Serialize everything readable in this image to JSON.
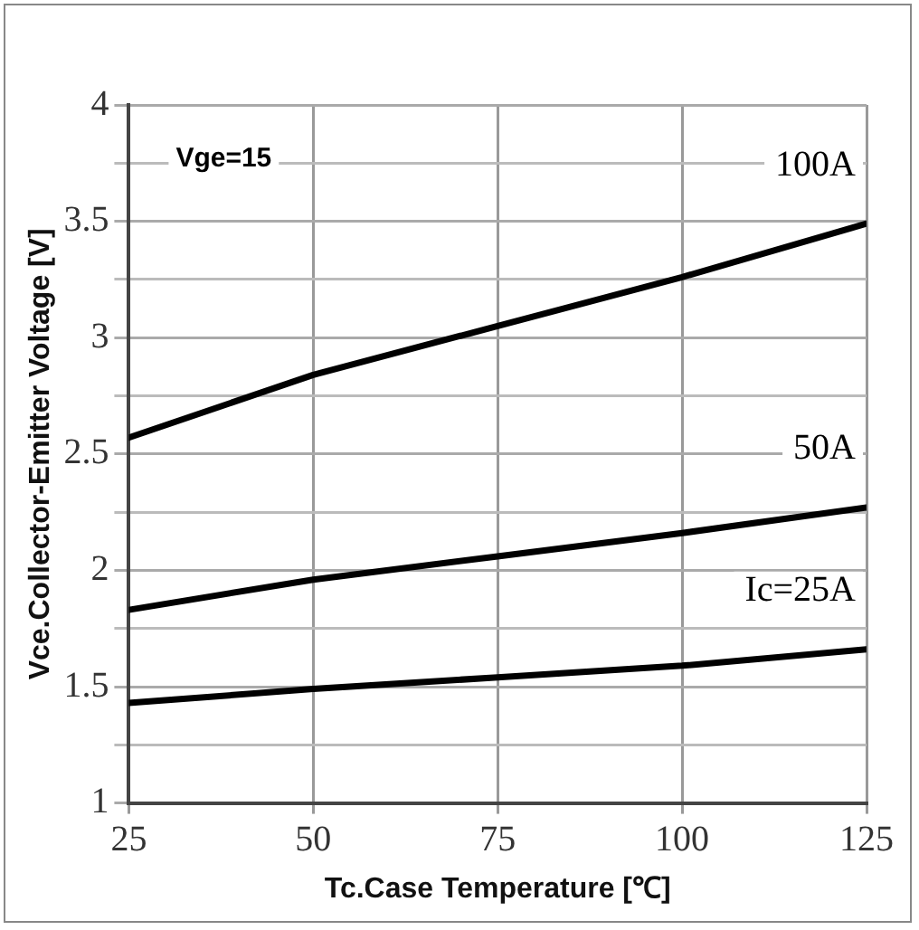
{
  "chart_data": {
    "type": "line",
    "xlabel": "Tc.Case Temperature [℃]",
    "ylabel": "Vce.Collector-Emitter Voltage [V]",
    "annotations": [
      "Vge=15"
    ],
    "x": [
      25,
      50,
      75,
      100,
      125
    ],
    "series": [
      {
        "name": "100A",
        "color": "#000000",
        "values": [
          2.57,
          2.84,
          3.05,
          3.26,
          3.49
        ]
      },
      {
        "name": "50A",
        "color": "#000000",
        "values": [
          1.83,
          1.96,
          2.06,
          2.16,
          2.27
        ]
      },
      {
        "name": "Ic=25A",
        "color": "#000000",
        "values": [
          1.43,
          1.49,
          1.54,
          1.59,
          1.66
        ]
      }
    ],
    "xlim": [
      25,
      125
    ],
    "xticks": [
      25,
      50,
      75,
      100,
      125
    ],
    "ylim": [
      1,
      4
    ],
    "yticks": [
      1,
      {
        "value": 1.25,
        "label": null
      },
      1.5,
      {
        "value": 1.75,
        "label": null
      },
      2,
      {
        "value": 2.25,
        "label": null
      },
      2.5,
      {
        "value": 2.75,
        "label": null
      },
      3,
      {
        "value": 3.25,
        "label": null
      },
      3.5,
      {
        "value": 3.75,
        "label": null
      },
      4
    ],
    "grid": true,
    "legend": false,
    "marker": "none",
    "line_style": "solid"
  }
}
